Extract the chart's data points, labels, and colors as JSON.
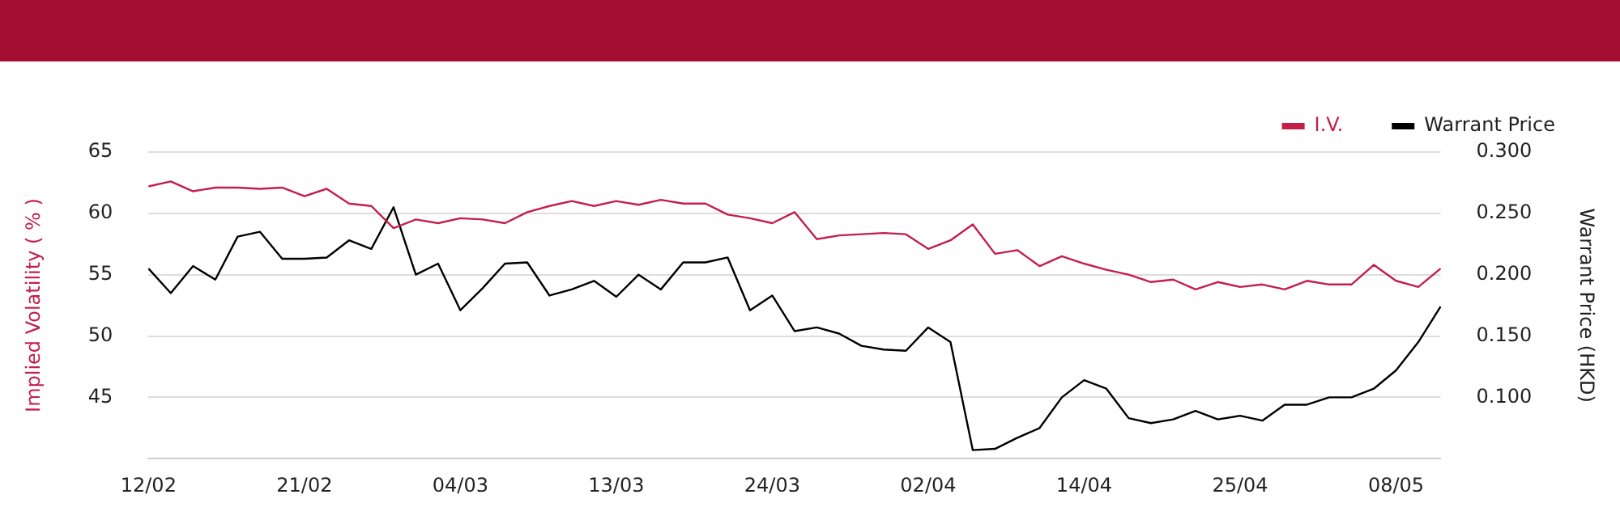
{
  "chart_data": {
    "type": "line",
    "ylabel": "Implied Volatility ( % )",
    "y2label": "Warrant Price (HKD)",
    "categories": [
      "12/02",
      null,
      null,
      null,
      null,
      null,
      null,
      "21/02",
      null,
      null,
      null,
      null,
      null,
      null,
      "04/03",
      null,
      null,
      null,
      null,
      null,
      null,
      "13/03",
      null,
      null,
      null,
      null,
      null,
      null,
      "24/03",
      null,
      null,
      null,
      null,
      null,
      null,
      "02/04",
      null,
      null,
      null,
      null,
      null,
      null,
      "14/04",
      null,
      null,
      null,
      null,
      null,
      null,
      "25/04",
      null,
      null,
      null,
      null,
      null,
      null,
      "08/05",
      null,
      null
    ],
    "series": [
      {
        "name": "I.V.",
        "color": "#c41e4a",
        "values": [
          62.2,
          62.6,
          61.8,
          62.1,
          62.1,
          62.0,
          62.1,
          61.4,
          62.0,
          60.8,
          60.6,
          58.8,
          59.5,
          59.2,
          59.6,
          59.5,
          59.2,
          60.1,
          60.6,
          61.0,
          60.6,
          61.0,
          60.7,
          61.1,
          60.8,
          60.8,
          59.9,
          59.6,
          59.2,
          60.1,
          57.9,
          58.2,
          58.3,
          58.4,
          58.3,
          57.1,
          57.8,
          59.1,
          56.7,
          57.0,
          55.7,
          56.5,
          55.9,
          55.4,
          55.0,
          54.4,
          54.6,
          53.8,
          54.4,
          54.0,
          54.2,
          53.8,
          54.5,
          54.2,
          54.2,
          55.8,
          54.5,
          54.0,
          55.5
        ]
      },
      {
        "name": "Warrant Price",
        "color": "#000000",
        "axis": "y2",
        "values": [
          0.205,
          0.185,
          0.207,
          0.196,
          0.231,
          0.235,
          0.213,
          0.213,
          0.214,
          0.228,
          0.221,
          0.255,
          0.2,
          0.209,
          0.171,
          0.189,
          0.209,
          0.21,
          0.183,
          0.188,
          0.195,
          0.182,
          0.2,
          0.188,
          0.21,
          0.21,
          0.214,
          0.171,
          0.183,
          0.154,
          0.157,
          0.152,
          0.142,
          0.139,
          0.138,
          0.157,
          0.145,
          0.057,
          0.058,
          0.067,
          0.075,
          0.1,
          0.114,
          0.107,
          0.083,
          0.079,
          0.082,
          0.089,
          0.082,
          0.085,
          0.081,
          0.094,
          0.094,
          0.1,
          0.1,
          0.107,
          0.122,
          0.145,
          0.174
        ]
      }
    ],
    "ylim": [
      40,
      65
    ],
    "yticks": [
      45,
      50,
      55,
      60,
      65
    ],
    "y2lim": [
      0.05,
      0.3
    ],
    "y2ticks": [
      {
        "value": 0.1,
        "label": "0.100"
      },
      {
        "value": 0.15,
        "label": "0.150"
      },
      {
        "value": 0.2,
        "label": "0.200"
      },
      {
        "value": 0.25,
        "label": "0.250"
      },
      {
        "value": 0.3,
        "label": "0.300"
      }
    ],
    "grid": "y",
    "legend": "top right",
    "marker": "none",
    "line_style": "solid"
  }
}
